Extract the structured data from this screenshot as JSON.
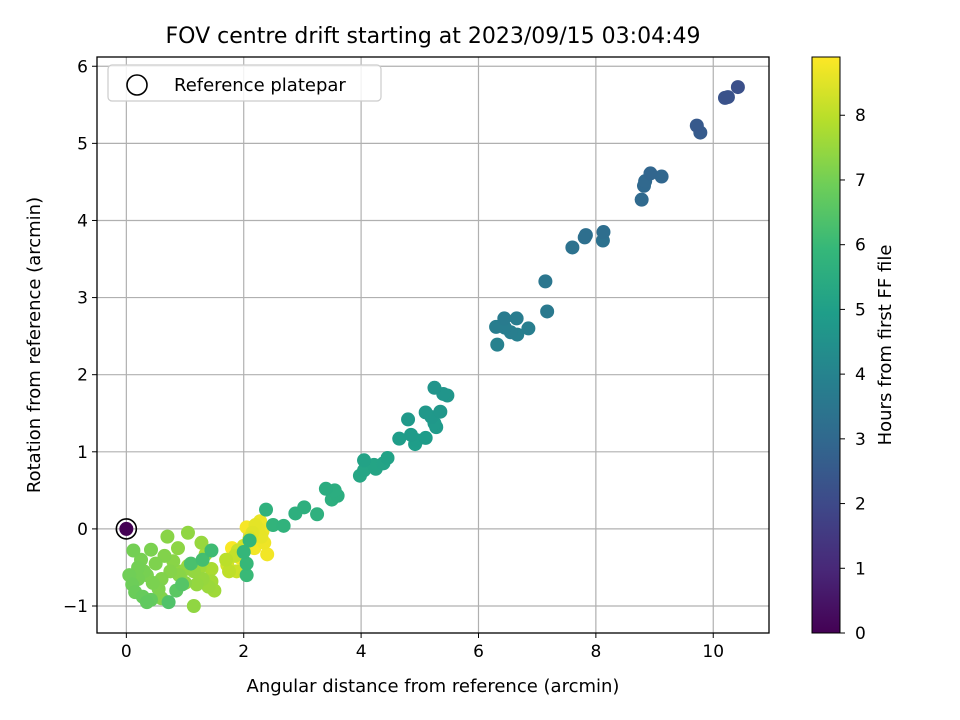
{
  "chart_data": {
    "type": "scatter",
    "title": "FOV centre drift starting at 2023/09/15 03:04:49",
    "xlabel": "Angular distance from reference (arcmin)",
    "ylabel": "Rotation from reference (arcmin)",
    "xlim": [
      -0.5,
      10.95
    ],
    "ylim": [
      -1.35,
      6.12
    ],
    "xticks": [
      0,
      2,
      4,
      6,
      8,
      10
    ],
    "yticks": [
      -1,
      0,
      1,
      2,
      3,
      4,
      5,
      6
    ],
    "grid": true,
    "colormap": "viridis",
    "colorbar": {
      "label": "Hours from first FF file",
      "range": [
        0,
        8.9
      ],
      "ticks": [
        0,
        1,
        2,
        3,
        4,
        5,
        6,
        7,
        8
      ]
    },
    "legend": {
      "placement": "top-left",
      "entries": [
        {
          "label": "Reference platepar",
          "marker": "open-circle"
        }
      ]
    },
    "reference_point": {
      "x": 0.0,
      "y": 0.0,
      "c": 0.0
    },
    "points": [
      {
        "x": 10.42,
        "y": 5.73,
        "c": 2.2
      },
      {
        "x": 10.25,
        "y": 5.6,
        "c": 2.25
      },
      {
        "x": 10.2,
        "y": 5.59,
        "c": 2.3
      },
      {
        "x": 9.72,
        "y": 5.23,
        "c": 2.5
      },
      {
        "x": 9.78,
        "y": 5.14,
        "c": 2.55
      },
      {
        "x": 8.93,
        "y": 4.61,
        "c": 2.9
      },
      {
        "x": 9.12,
        "y": 4.57,
        "c": 2.95
      },
      {
        "x": 8.84,
        "y": 4.51,
        "c": 3.0
      },
      {
        "x": 8.82,
        "y": 4.45,
        "c": 3.02
      },
      {
        "x": 8.78,
        "y": 4.27,
        "c": 3.05
      },
      {
        "x": 8.13,
        "y": 3.85,
        "c": 3.2
      },
      {
        "x": 7.83,
        "y": 3.81,
        "c": 3.25
      },
      {
        "x": 7.81,
        "y": 3.78,
        "c": 3.27
      },
      {
        "x": 8.12,
        "y": 3.74,
        "c": 3.3
      },
      {
        "x": 7.6,
        "y": 3.65,
        "c": 3.35
      },
      {
        "x": 7.14,
        "y": 3.21,
        "c": 3.5
      },
      {
        "x": 7.17,
        "y": 2.82,
        "c": 3.6
      },
      {
        "x": 6.44,
        "y": 2.73,
        "c": 3.7
      },
      {
        "x": 6.65,
        "y": 2.73,
        "c": 3.72
      },
      {
        "x": 6.3,
        "y": 2.62,
        "c": 3.75
      },
      {
        "x": 6.45,
        "y": 2.61,
        "c": 3.77
      },
      {
        "x": 6.85,
        "y": 2.6,
        "c": 3.8
      },
      {
        "x": 6.55,
        "y": 2.55,
        "c": 3.82
      },
      {
        "x": 6.66,
        "y": 2.52,
        "c": 3.85
      },
      {
        "x": 6.32,
        "y": 2.39,
        "c": 3.9
      },
      {
        "x": 5.25,
        "y": 1.83,
        "c": 4.6
      },
      {
        "x": 5.4,
        "y": 1.75,
        "c": 4.62
      },
      {
        "x": 5.47,
        "y": 1.73,
        "c": 4.65
      },
      {
        "x": 5.35,
        "y": 1.52,
        "c": 4.7
      },
      {
        "x": 5.1,
        "y": 1.51,
        "c": 4.72
      },
      {
        "x": 5.2,
        "y": 1.45,
        "c": 4.75
      },
      {
        "x": 4.8,
        "y": 1.42,
        "c": 4.78
      },
      {
        "x": 5.25,
        "y": 1.37,
        "c": 4.8
      },
      {
        "x": 5.28,
        "y": 1.32,
        "c": 4.82
      },
      {
        "x": 4.85,
        "y": 1.22,
        "c": 4.85
      },
      {
        "x": 5.1,
        "y": 1.18,
        "c": 4.88
      },
      {
        "x": 4.65,
        "y": 1.17,
        "c": 4.9
      },
      {
        "x": 4.95,
        "y": 1.15,
        "c": 4.92
      },
      {
        "x": 4.92,
        "y": 1.1,
        "c": 4.95
      },
      {
        "x": 4.45,
        "y": 0.92,
        "c": 5.1
      },
      {
        "x": 4.05,
        "y": 0.89,
        "c": 5.12
      },
      {
        "x": 4.38,
        "y": 0.85,
        "c": 5.15
      },
      {
        "x": 4.22,
        "y": 0.83,
        "c": 5.17
      },
      {
        "x": 4.25,
        "y": 0.78,
        "c": 5.2
      },
      {
        "x": 4.05,
        "y": 0.76,
        "c": 5.22
      },
      {
        "x": 3.98,
        "y": 0.69,
        "c": 5.25
      },
      {
        "x": 3.4,
        "y": 0.52,
        "c": 5.5
      },
      {
        "x": 3.55,
        "y": 0.5,
        "c": 5.52
      },
      {
        "x": 3.6,
        "y": 0.43,
        "c": 5.55
      },
      {
        "x": 3.5,
        "y": 0.38,
        "c": 5.57
      },
      {
        "x": 3.03,
        "y": 0.28,
        "c": 5.6
      },
      {
        "x": 2.88,
        "y": 0.2,
        "c": 5.62
      },
      {
        "x": 3.25,
        "y": 0.19,
        "c": 5.65
      },
      {
        "x": 2.38,
        "y": 0.25,
        "c": 5.7
      },
      {
        "x": 2.68,
        "y": 0.04,
        "c": 5.75
      },
      {
        "x": 2.5,
        "y": 0.05,
        "c": 5.78
      },
      {
        "x": 2.1,
        "y": -0.15,
        "c": 5.85
      },
      {
        "x": 2.0,
        "y": -0.3,
        "c": 5.9
      },
      {
        "x": 2.05,
        "y": -0.45,
        "c": 5.95
      },
      {
        "x": 2.05,
        "y": -0.6,
        "c": 6.0
      },
      {
        "x": 1.45,
        "y": -0.28,
        "c": 6.1
      },
      {
        "x": 1.3,
        "y": -0.4,
        "c": 6.2
      },
      {
        "x": 1.1,
        "y": -0.45,
        "c": 6.3
      },
      {
        "x": 0.72,
        "y": -0.95,
        "c": 6.4
      },
      {
        "x": 0.95,
        "y": -0.72,
        "c": 6.5
      },
      {
        "x": 0.85,
        "y": -0.8,
        "c": 6.6
      },
      {
        "x": 0.35,
        "y": -0.95,
        "c": 6.7
      },
      {
        "x": 0.42,
        "y": -0.92,
        "c": 6.75
      },
      {
        "x": 0.28,
        "y": -0.88,
        "c": 6.8
      },
      {
        "x": 0.15,
        "y": -0.82,
        "c": 6.85
      },
      {
        "x": 0.1,
        "y": -0.72,
        "c": 6.9
      },
      {
        "x": 0.05,
        "y": -0.6,
        "c": 6.95
      },
      {
        "x": 0.2,
        "y": -0.65,
        "c": 7.0
      },
      {
        "x": 0.3,
        "y": -0.55,
        "c": 7.05
      },
      {
        "x": 0.45,
        "y": -0.7,
        "c": 7.1
      },
      {
        "x": 0.55,
        "y": -0.78,
        "c": 7.15
      },
      {
        "x": 0.6,
        "y": -0.65,
        "c": 7.2
      },
      {
        "x": 0.75,
        "y": -0.55,
        "c": 7.25
      },
      {
        "x": 0.9,
        "y": -0.6,
        "c": 7.3
      },
      {
        "x": 1.0,
        "y": -0.7,
        "c": 7.35
      },
      {
        "x": 1.15,
        "y": -1.0,
        "c": 7.4
      },
      {
        "x": 1.2,
        "y": -0.72,
        "c": 7.45
      },
      {
        "x": 1.3,
        "y": -0.65,
        "c": 7.5
      },
      {
        "x": 1.4,
        "y": -0.75,
        "c": 7.55
      },
      {
        "x": 1.5,
        "y": -0.8,
        "c": 7.6
      },
      {
        "x": 1.45,
        "y": -0.68,
        "c": 7.65
      },
      {
        "x": 0.12,
        "y": -0.28,
        "c": 7.0
      },
      {
        "x": 0.25,
        "y": -0.4,
        "c": 7.05
      },
      {
        "x": 0.42,
        "y": -0.27,
        "c": 7.1
      },
      {
        "x": 0.65,
        "y": -0.35,
        "c": 7.2
      },
      {
        "x": 0.7,
        "y": -0.1,
        "c": 7.3
      },
      {
        "x": 0.88,
        "y": -0.25,
        "c": 7.35
      },
      {
        "x": 1.05,
        "y": -0.05,
        "c": 7.4
      },
      {
        "x": 1.15,
        "y": -0.55,
        "c": 7.45
      },
      {
        "x": 1.28,
        "y": -0.18,
        "c": 7.5
      },
      {
        "x": 1.05,
        "y": -0.48,
        "c": 7.55
      },
      {
        "x": 0.5,
        "y": -0.45,
        "c": 7.15
      },
      {
        "x": 0.35,
        "y": -0.6,
        "c": 7.1
      },
      {
        "x": 0.8,
        "y": -0.42,
        "c": 7.3
      },
      {
        "x": 0.95,
        "y": -0.55,
        "c": 7.4
      },
      {
        "x": 1.25,
        "y": -0.5,
        "c": 7.6
      },
      {
        "x": 1.35,
        "y": -0.33,
        "c": 7.7
      },
      {
        "x": 1.45,
        "y": -0.52,
        "c": 7.75
      },
      {
        "x": 0.6,
        "y": -0.9,
        "c": 7.2
      },
      {
        "x": 0.2,
        "y": -0.5,
        "c": 7.0
      },
      {
        "x": 1.7,
        "y": -0.4,
        "c": 8.0
      },
      {
        "x": 1.75,
        "y": -0.55,
        "c": 8.05
      },
      {
        "x": 1.85,
        "y": -0.35,
        "c": 8.1
      },
      {
        "x": 1.9,
        "y": -0.28,
        "c": 8.2
      },
      {
        "x": 2.0,
        "y": -0.22,
        "c": 8.3
      },
      {
        "x": 2.1,
        "y": -0.12,
        "c": 8.4
      },
      {
        "x": 2.15,
        "y": -0.05,
        "c": 8.5
      },
      {
        "x": 2.2,
        "y": 0.05,
        "c": 8.55
      },
      {
        "x": 2.3,
        "y": -0.1,
        "c": 8.6
      },
      {
        "x": 2.28,
        "y": 0.1,
        "c": 8.65
      },
      {
        "x": 2.35,
        "y": -0.18,
        "c": 8.7
      },
      {
        "x": 2.4,
        "y": -0.33,
        "c": 8.75
      },
      {
        "x": 2.05,
        "y": 0.02,
        "c": 8.8
      },
      {
        "x": 1.95,
        "y": -0.38,
        "c": 8.82
      },
      {
        "x": 1.8,
        "y": -0.25,
        "c": 8.85
      },
      {
        "x": 2.25,
        "y": 0.0,
        "c": 8.6
      },
      {
        "x": 2.32,
        "y": -0.03,
        "c": 8.7
      },
      {
        "x": 2.18,
        "y": -0.25,
        "c": 8.75
      },
      {
        "x": 1.72,
        "y": -0.47,
        "c": 8.3
      },
      {
        "x": 1.88,
        "y": -0.55,
        "c": 8.2
      }
    ]
  }
}
